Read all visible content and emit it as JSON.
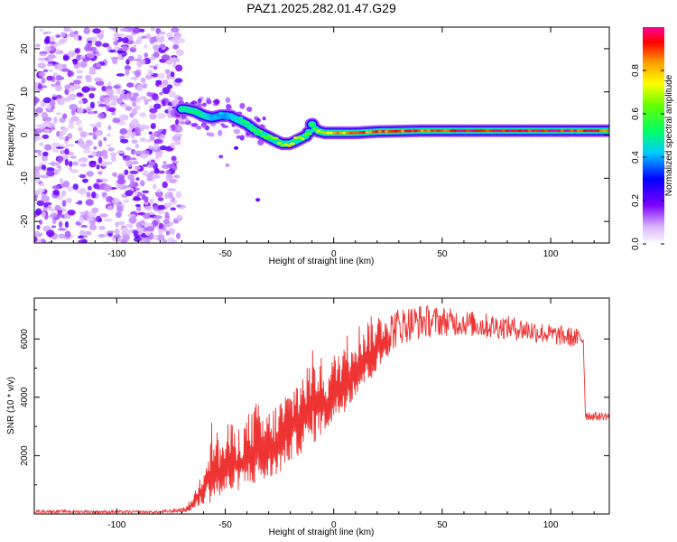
{
  "title": "PAZ1.2025.282.01.47.G29",
  "colors": {
    "snr_line": "#ee3333",
    "axis": "#000000",
    "background": "#ffffff"
  },
  "chart_data": [
    {
      "type": "heatmap",
      "name": "spectrogram",
      "xlabel": "Height of straight line (km)",
      "ylabel": "Frequency (Hz)",
      "xlim": [
        -138,
        127
      ],
      "ylim": [
        -25,
        25
      ],
      "xticks": [
        -100,
        -50,
        0,
        50,
        100
      ],
      "xtick_labels": [
        "-100",
        "-50",
        "0",
        "50",
        "100"
      ],
      "yticks": [
        -20,
        -10,
        0,
        10,
        20
      ],
      "ytick_labels": [
        "-20",
        "-10",
        "0",
        "10",
        "20"
      ],
      "ridge": {
        "x": [
          -68,
          -64,
          -60,
          -56,
          -52,
          -48,
          -44,
          -40,
          -36,
          -32,
          -28,
          -24,
          -20,
          -16,
          -12,
          -10,
          -8,
          -4,
          0,
          10,
          20,
          40,
          60,
          80,
          100,
          127
        ],
        "frequency": [
          6,
          5.5,
          4.5,
          4,
          4.5,
          4.5,
          3.5,
          2.5,
          1,
          0,
          -1,
          -2,
          -2,
          -1,
          0,
          2.5,
          1,
          0.5,
          0.5,
          0.5,
          0.8,
          1,
          1,
          1,
          1,
          1
        ],
        "amplitude": [
          0.5,
          0.5,
          0.45,
          0.4,
          0.4,
          0.4,
          0.45,
          0.5,
          0.55,
          0.6,
          0.65,
          0.7,
          0.75,
          0.7,
          0.6,
          0.6,
          0.65,
          0.75,
          0.8,
          0.85,
          0.9,
          0.9,
          0.95,
          0.95,
          0.95,
          0.9
        ]
      },
      "noise_region": {
        "x_range": [
          -138,
          -70
        ],
        "amplitude_range": [
          0.0,
          0.15
        ]
      },
      "colorbar": {
        "label": "Normalized spectral amplitude",
        "range": [
          0,
          1
        ],
        "ticks": [
          0.0,
          0.2,
          0.4,
          0.6,
          0.8
        ],
        "tick_labels": [
          "0.0",
          "0.2",
          "0.4",
          "0.6",
          "0.8"
        ]
      }
    },
    {
      "type": "line",
      "name": "snr",
      "xlabel": "Height of straight line (km)",
      "ylabel": "SNR (10 * v/v)",
      "xlim": [
        -138,
        127
      ],
      "ylim": [
        0,
        7400
      ],
      "xticks": [
        -100,
        -50,
        0,
        50,
        100
      ],
      "xtick_labels": [
        "-100",
        "-50",
        "0",
        "50",
        "100"
      ],
      "yticks": [
        2000,
        4000,
        6000
      ],
      "ytick_labels": [
        "2000",
        "4000",
        "6000"
      ],
      "envelope": {
        "x": [
          -138,
          -110,
          -80,
          -68,
          -64,
          -60,
          -56,
          -52,
          -48,
          -44,
          -40,
          -36,
          -32,
          -28,
          -24,
          -20,
          -16,
          -12,
          -8,
          -4,
          0,
          5,
          10,
          15,
          20,
          25,
          30,
          40,
          50,
          60,
          70,
          80,
          90,
          100,
          110,
          115,
          116,
          120,
          127
        ],
        "low": [
          40,
          30,
          20,
          60,
          150,
          300,
          400,
          500,
          600,
          800,
          900,
          1000,
          1000,
          1200,
          1400,
          1800,
          2000,
          2200,
          2500,
          2800,
          3100,
          3500,
          4000,
          4400,
          4800,
          5400,
          5800,
          6000,
          6100,
          6100,
          6000,
          6000,
          5900,
          5800,
          5700,
          5700,
          3200,
          3200,
          3200
        ],
        "high": [
          140,
          130,
          110,
          250,
          800,
          1800,
          3300,
          2600,
          3200,
          3000,
          3400,
          3900,
          3500,
          3700,
          4100,
          4400,
          4900,
          5300,
          5900,
          5000,
          5500,
          6100,
          6500,
          6700,
          6900,
          7000,
          7100,
          7200,
          7100,
          7000,
          6900,
          6800,
          6700,
          6500,
          6400,
          6300,
          3600,
          3500,
          3500
        ]
      }
    }
  ]
}
